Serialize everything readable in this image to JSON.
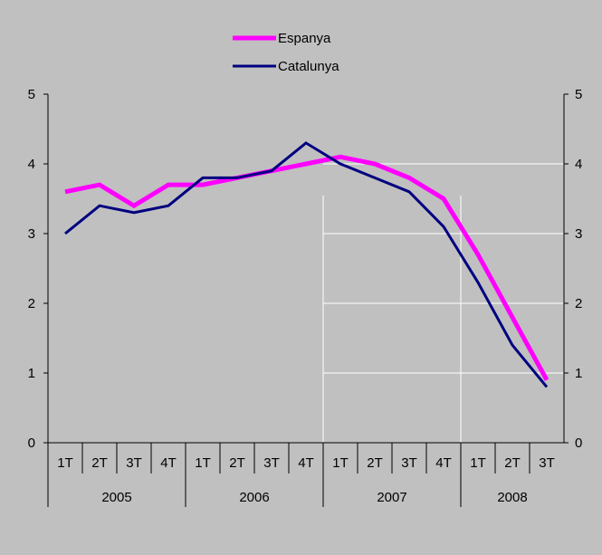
{
  "chart_data": {
    "type": "line",
    "title": "",
    "xlabel": "",
    "ylabel": "",
    "ylim": [
      0,
      5
    ],
    "yticks": [
      "0",
      "1",
      "2",
      "3",
      "4",
      "5"
    ],
    "grid": "partial (2007-2008 region only)",
    "legend_position": "top-center",
    "categories": [
      "1T",
      "2T",
      "3T",
      "4T",
      "1T",
      "2T",
      "3T",
      "4T",
      "1T",
      "2T",
      "3T",
      "4T",
      "1T",
      "2T",
      "3T"
    ],
    "year_groups": [
      {
        "label": "2005",
        "count": 4
      },
      {
        "label": "2006",
        "count": 4
      },
      {
        "label": "2007",
        "count": 4
      },
      {
        "label": "2008",
        "count": 3
      }
    ],
    "series": [
      {
        "name": "Espanya",
        "color": "#ff00ff",
        "values": [
          3.6,
          3.7,
          3.4,
          3.7,
          3.7,
          3.8,
          3.9,
          4.0,
          4.1,
          4.0,
          3.8,
          3.5,
          2.7,
          1.8,
          0.9
        ]
      },
      {
        "name": "Catalunya",
        "color": "#000080",
        "values": [
          3.0,
          3.4,
          3.3,
          3.4,
          3.8,
          3.8,
          3.9,
          4.3,
          4.0,
          3.8,
          3.6,
          3.1,
          2.3,
          1.4,
          0.8
        ]
      }
    ],
    "colors": {
      "background": "#c0c0c0",
      "grid": "#ffffff",
      "axis": "#000000"
    }
  }
}
